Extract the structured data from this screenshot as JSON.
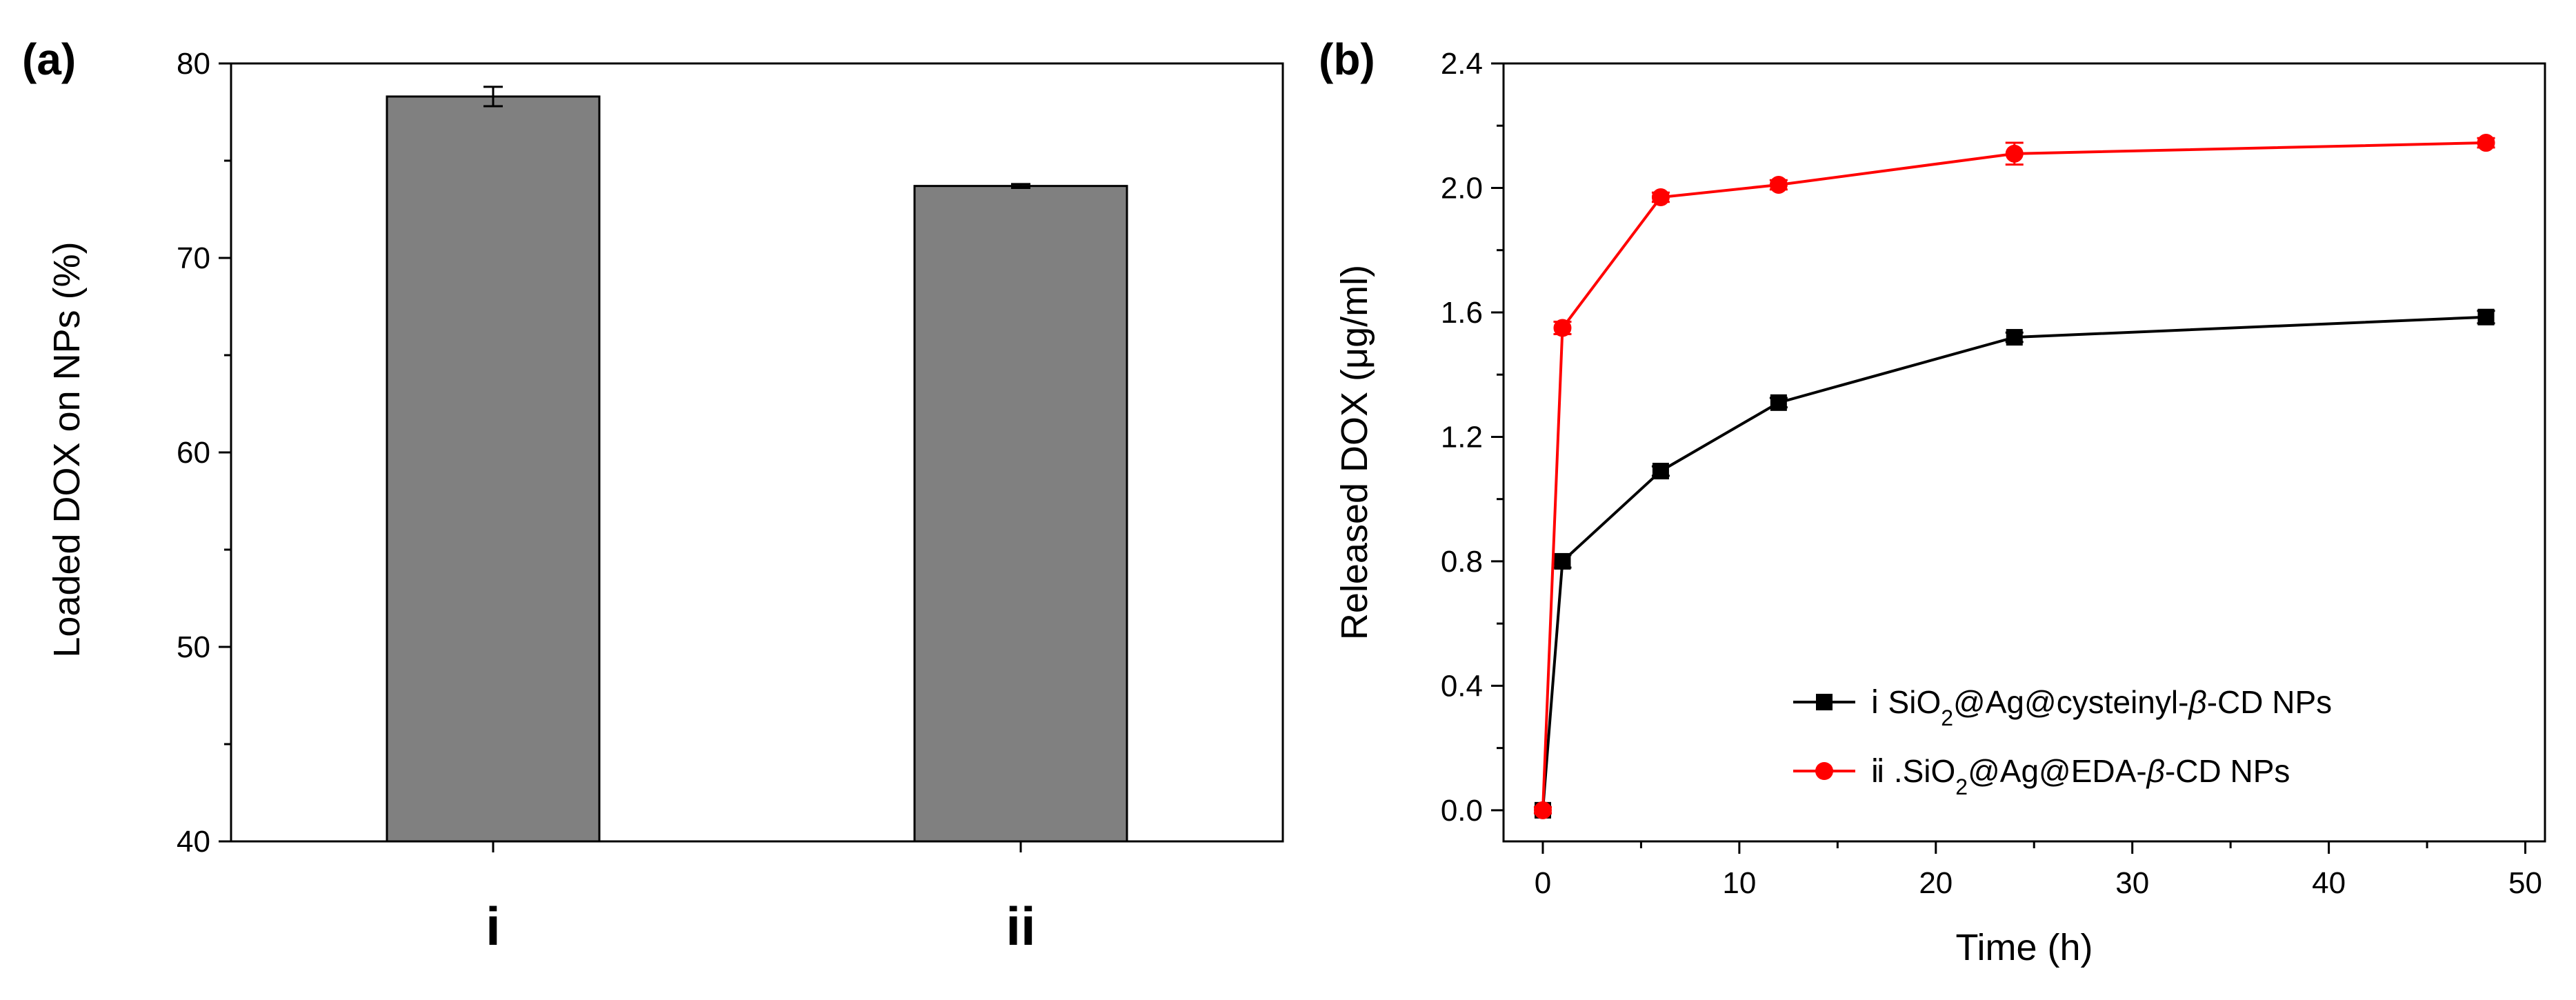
{
  "chart_data": [
    {
      "type": "bar",
      "panel_label": "(a)",
      "categories": [
        "i",
        "ii"
      ],
      "values": [
        78.3,
        73.7
      ],
      "errors": [
        0.5,
        0.1
      ],
      "ylabel": "Loaded DOX on NPs (%)",
      "xlabel": "",
      "ylim": [
        40,
        80
      ],
      "yticks": [
        "40",
        "50",
        "60",
        "70",
        "80"
      ],
      "bar_color": "#808080"
    },
    {
      "type": "line",
      "panel_label": "(b)",
      "xlabel": "Time (h)",
      "ylabel": "Released DOX (μg/ml)",
      "xlim": [
        -2,
        51
      ],
      "ylim": [
        -0.1,
        2.4
      ],
      "xticks": [
        "0",
        "10",
        "20",
        "30",
        "40",
        "50"
      ],
      "yticks": [
        "0.0",
        "0.4",
        "0.8",
        "1.2",
        "1.6",
        "2.0",
        "2.4"
      ],
      "legend_position": "bottom-right",
      "series": [
        {
          "name": "ⅰ SiO2@Ag@cysteinyl-β-CD NPs",
          "legend_parts": [
            "ⅰ SiO",
            "2",
            "@Ag@cysteinyl-",
            "β",
            "-CD NPs"
          ],
          "color": "#000000",
          "marker": "square",
          "x": [
            0,
            1,
            6,
            12,
            24,
            48
          ],
          "values": [
            0.0,
            0.8,
            1.09,
            1.31,
            1.52,
            1.585
          ],
          "errors": [
            0.01,
            0.02,
            0.015,
            0.015,
            0.015,
            0.02
          ]
        },
        {
          "name": "ⅱ .SiO2@Ag@EDA-β-CD NPs",
          "legend_parts": [
            "ⅱ .SiO",
            "2",
            "@Ag@EDA-",
            "β",
            "-CD NPs"
          ],
          "color": "#ff0000",
          "marker": "circle",
          "x": [
            0,
            1,
            6,
            12,
            24,
            48
          ],
          "values": [
            0.0,
            1.55,
            1.97,
            2.01,
            2.11,
            2.145
          ],
          "errors": [
            0.01,
            0.02,
            0.015,
            0.015,
            0.035,
            0.015
          ]
        }
      ]
    }
  ]
}
